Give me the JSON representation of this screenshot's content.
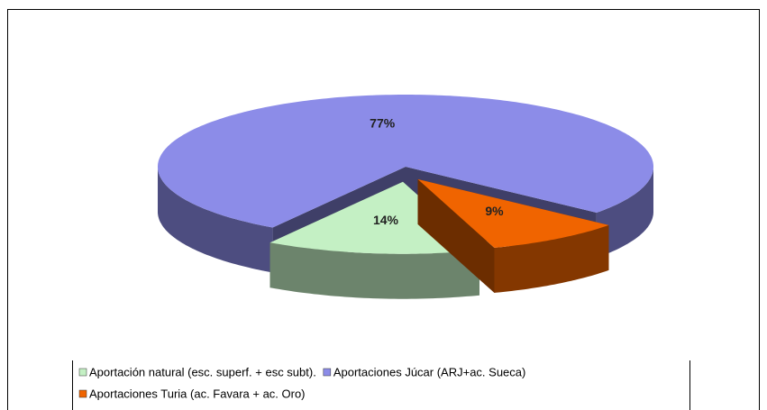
{
  "chart_data": {
    "type": "pie",
    "categories": [
      "Aportación natural (esc. superf. + esc subt).",
      "Aportaciones Júcar (ARJ+ac. Sueca)",
      "Aportaciones Turia (ac. Favara + ac. Oro)"
    ],
    "values": [
      14,
      77,
      9
    ],
    "value_labels": [
      "14%",
      "77%",
      "9%"
    ],
    "colors": [
      "#c4f0c4",
      "#8c8ce8",
      "#f06400"
    ],
    "exploded": [
      true,
      false,
      true
    ],
    "legend": "bottom"
  }
}
